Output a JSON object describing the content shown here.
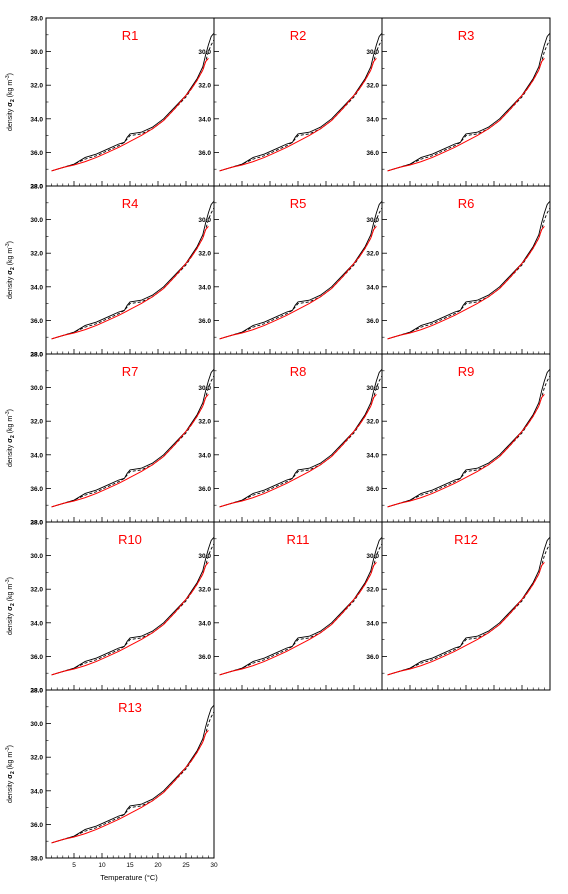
{
  "figure": {
    "xlabel": "Temperature (°C)",
    "ylabel_prefix": "density ",
    "ylabel_sigma": "σ",
    "ylabel_sub": "2",
    "ylabel_units": " (kg m",
    "ylabel_exp": "-3",
    "ylabel_close": ")"
  },
  "colors": {
    "title": "#ff0000",
    "model_line": "#ff0000",
    "obs_line": "#000000",
    "frame": "#000000"
  },
  "chart_data": {
    "type": "line",
    "xlim": [
      0,
      30
    ],
    "ylim": [
      38.0,
      28.0
    ],
    "y_inverted": true,
    "xticks": [
      5,
      10,
      15,
      20,
      25,
      30
    ],
    "ytick_labels": [
      "28.0",
      "30.0",
      "32.0",
      "34.0",
      "36.0",
      "38.0"
    ],
    "yticks": [
      28.0,
      30.0,
      32.0,
      34.0,
      36.0,
      38.0
    ],
    "panels": [
      {
        "title": "R1"
      },
      {
        "title": "R2"
      },
      {
        "title": "R3"
      },
      {
        "title": "R4"
      },
      {
        "title": "R5"
      },
      {
        "title": "R6"
      },
      {
        "title": "R7"
      },
      {
        "title": "R8"
      },
      {
        "title": "R9"
      },
      {
        "title": "R10"
      },
      {
        "title": "R11"
      },
      {
        "title": "R12"
      },
      {
        "title": "R13"
      }
    ],
    "series": [
      {
        "style": "solid",
        "color": "#000000",
        "x": [
          1,
          3,
          5,
          7,
          9,
          11,
          13,
          14,
          14.5,
          15,
          17,
          19,
          21,
          23,
          25,
          26,
          27,
          28,
          28.5,
          29,
          29.5,
          30
        ],
        "y": [
          37.1,
          36.9,
          36.7,
          36.3,
          36.1,
          35.8,
          35.5,
          35.4,
          35.1,
          34.9,
          34.8,
          34.5,
          34.0,
          33.3,
          32.6,
          32.1,
          31.6,
          30.9,
          30.2,
          29.6,
          29.1,
          28.9
        ]
      },
      {
        "style": "dashed",
        "color": "#000000",
        "x": [
          1,
          3,
          5,
          7,
          9,
          11,
          13,
          14,
          15,
          17,
          19,
          21,
          23,
          25,
          26,
          27,
          28,
          28.5,
          29,
          29.5,
          30
        ],
        "y": [
          37.1,
          36.9,
          36.7,
          36.4,
          36.2,
          35.9,
          35.6,
          35.4,
          35.0,
          34.9,
          34.6,
          34.1,
          33.4,
          32.7,
          32.2,
          31.7,
          31.1,
          30.6,
          30.0,
          29.6,
          29.3
        ]
      },
      {
        "style": "solid",
        "color": "#ff0000",
        "x": [
          1,
          3,
          5,
          7,
          9,
          11,
          13,
          15,
          17,
          19,
          21,
          23,
          25,
          26,
          27,
          28,
          28.5,
          29
        ],
        "y": [
          37.1,
          36.9,
          36.75,
          36.55,
          36.3,
          36.0,
          35.7,
          35.35,
          35.0,
          34.6,
          34.1,
          33.4,
          32.6,
          32.2,
          31.7,
          31.1,
          30.6,
          30.4
        ]
      }
    ]
  }
}
